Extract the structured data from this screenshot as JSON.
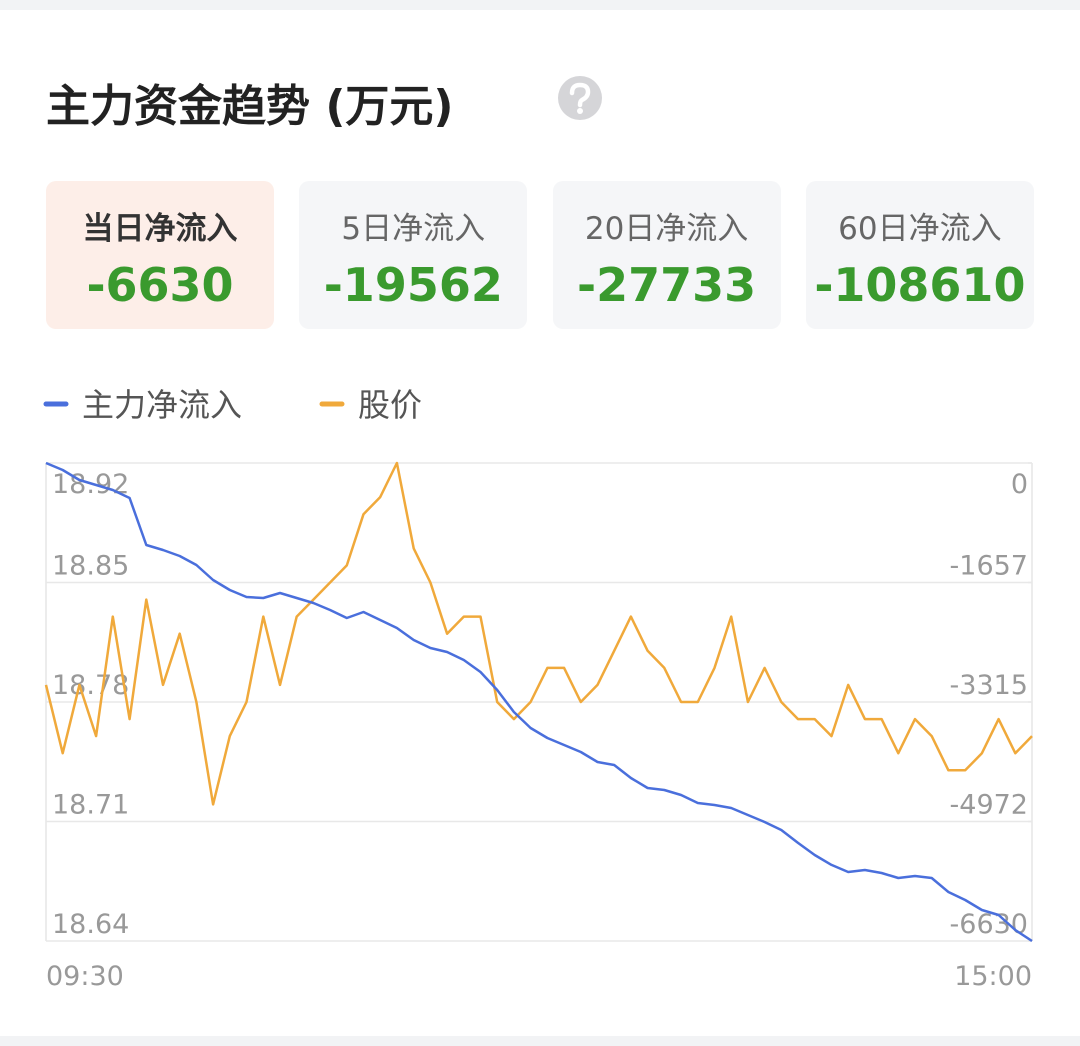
{
  "header": {
    "title": "主力资金趋势 (万元)"
  },
  "cards": [
    {
      "label": "当日净流入",
      "value": -6630
    },
    {
      "label": "5日净流入",
      "value": -19562
    },
    {
      "label": "20日净流入",
      "value": -27733
    },
    {
      "label": "60日净流入",
      "value": -108610
    }
  ],
  "chart_data": {
    "type": "line",
    "categories": [
      "09:30",
      null,
      null,
      null,
      null,
      null,
      null,
      null,
      null,
      null,
      null,
      null,
      null,
      null,
      null,
      null,
      null,
      null,
      null,
      null,
      null,
      null,
      null,
      null,
      null,
      null,
      null,
      null,
      null,
      null,
      null,
      null,
      null,
      null,
      null,
      null,
      null,
      null,
      null,
      null,
      null,
      null,
      null,
      null,
      null,
      null,
      null,
      null,
      null,
      null,
      null,
      null,
      null,
      null,
      null,
      null,
      null,
      null,
      null,
      "15:00"
    ],
    "series": [
      {
        "name": "主力净流入",
        "color": "#4a6fdc",
        "axis": "y2",
        "values": [
          0,
          -97,
          -236,
          -305,
          -374,
          -485,
          -1137,
          -1207,
          -1290,
          -1415,
          -1623,
          -1761,
          -1859,
          -1872,
          -1803,
          -1872,
          -1942,
          -2039,
          -2150,
          -2067,
          -2178,
          -2289,
          -2455,
          -2566,
          -2621,
          -2732,
          -2899,
          -3148,
          -3454,
          -3676,
          -3814,
          -3911,
          -4008,
          -4147,
          -4189,
          -4369,
          -4508,
          -4535,
          -4605,
          -4716,
          -4743,
          -4785,
          -4882,
          -4979,
          -5090,
          -5270,
          -5437,
          -5575,
          -5673,
          -5645,
          -5687,
          -5756,
          -5728,
          -5756,
          -5950,
          -6061,
          -6200,
          -6269,
          -6477,
          -6630
        ]
      },
      {
        "name": "股价",
        "color": "#f0a93b",
        "values": [
          18.79,
          18.75,
          18.79,
          18.76,
          18.83,
          18.77,
          18.84,
          18.79,
          18.82,
          18.78,
          18.72,
          18.76,
          18.78,
          18.83,
          18.79,
          18.83,
          18.84,
          18.85,
          18.86,
          18.89,
          18.9,
          18.92,
          18.87,
          18.85,
          18.82,
          18.83,
          18.83,
          18.78,
          18.77,
          18.78,
          18.8,
          18.8,
          18.78,
          18.79,
          18.81,
          18.83,
          18.81,
          18.8,
          18.78,
          18.78,
          18.8,
          18.83,
          18.78,
          18.8,
          18.78,
          18.77,
          18.77,
          18.76,
          18.79,
          18.77,
          18.77,
          18.75,
          18.77,
          18.76,
          18.74,
          18.74,
          18.75,
          18.77,
          18.75,
          18.76
        ]
      }
    ],
    "ylim": [
      18.64,
      18.92
    ],
    "yticks": [
      18.64,
      18.71,
      18.78,
      18.85,
      18.92
    ],
    "y2lim": [
      -6630,
      0
    ],
    "y2ticks": [
      -6630,
      -4972,
      -3315,
      -1657,
      0
    ],
    "grid": true,
    "legend": "top-left"
  }
}
